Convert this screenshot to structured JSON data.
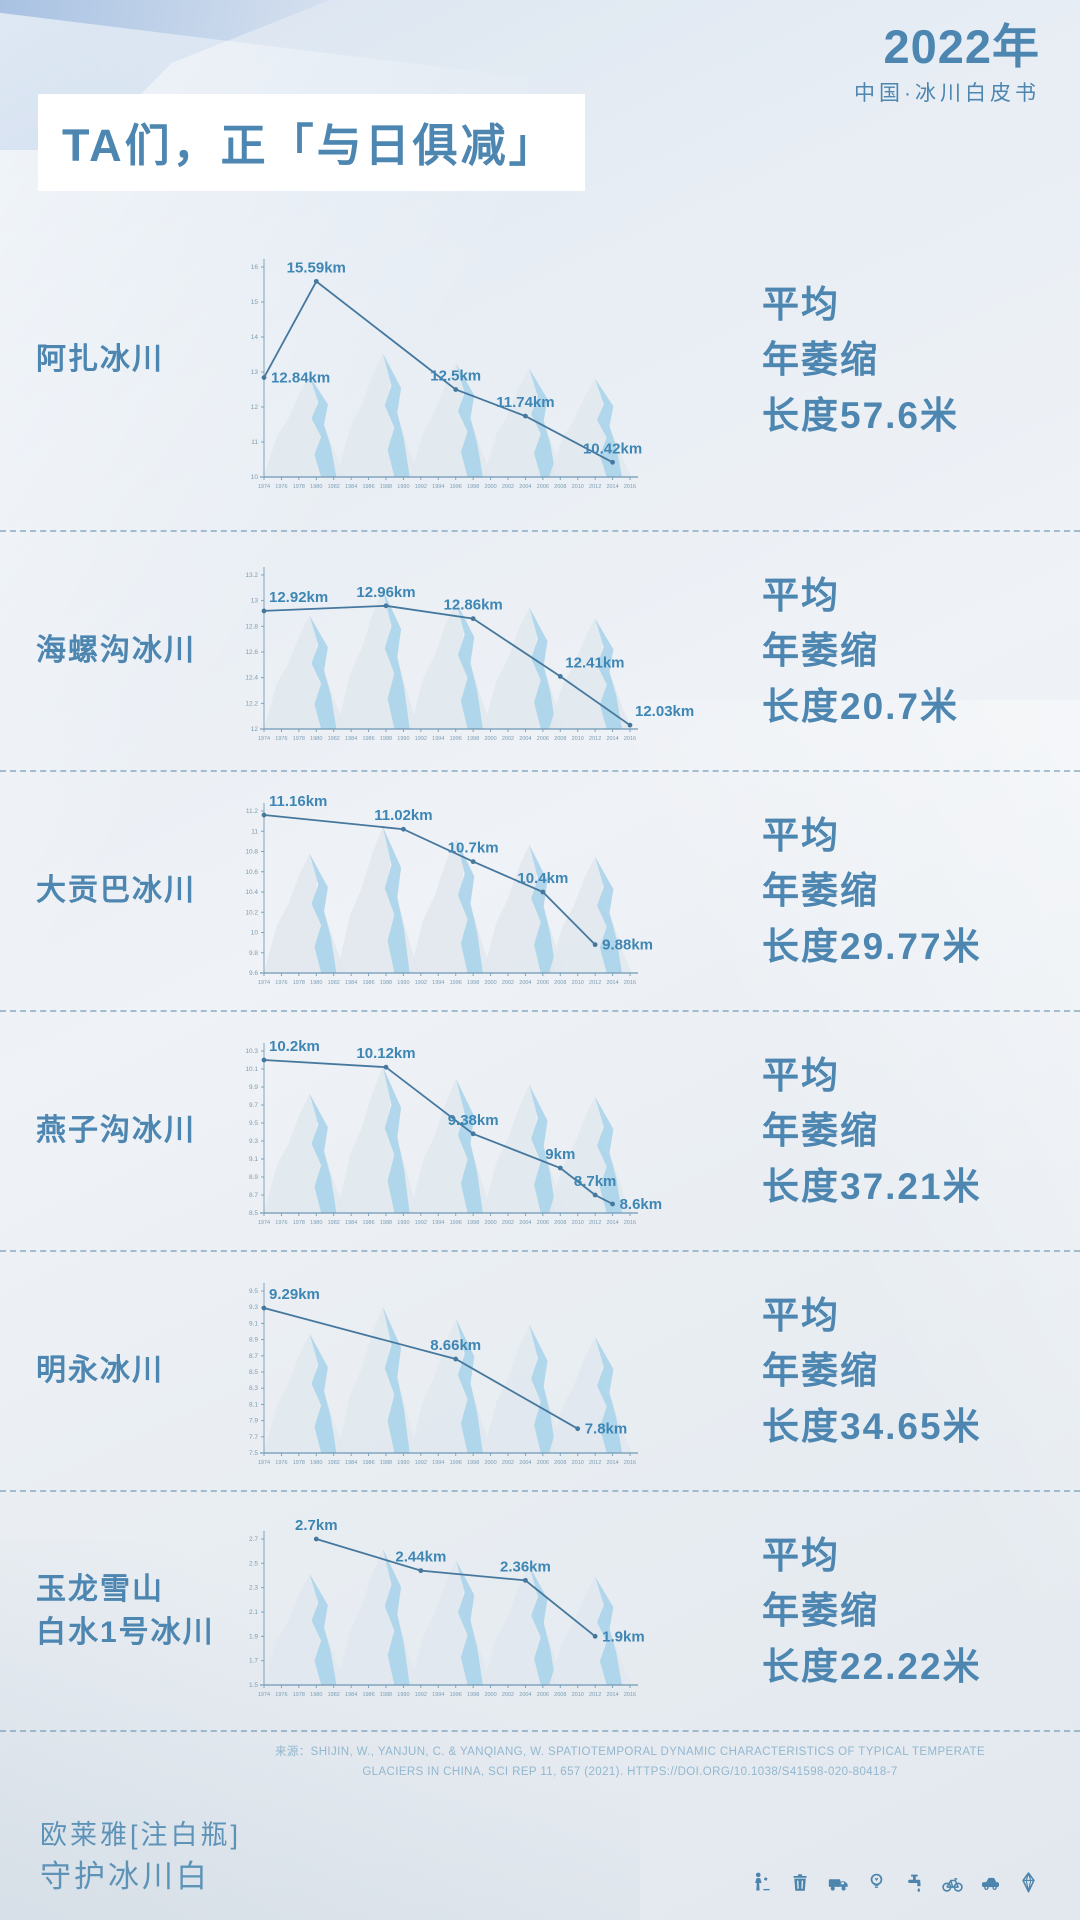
{
  "header": {
    "year": "2022年",
    "subtitle": "中国·冰川白皮书"
  },
  "title": "TA们，正「与日俱减」",
  "colors": {
    "accent_text": "#4d86b0",
    "chart_line": "#46789e",
    "point_label": "#3e86b4",
    "tick_text": "#7b9cb3",
    "mountain_gray": "#e2e8ee",
    "mountain_blue": "#a7d2ea",
    "divider": "#658FAE",
    "source_text": "#92b7cf",
    "plate_bg": "#ffffff"
  },
  "sections": [
    {
      "name_lines": [
        "阿扎冰川"
      ],
      "stat_lines": [
        "平均",
        "年萎缩",
        "长度57.6米"
      ]
    },
    {
      "name_lines": [
        "海螺沟冰川"
      ],
      "stat_lines": [
        "平均",
        "年萎缩",
        "长度20.7米"
      ]
    },
    {
      "name_lines": [
        "大贡巴冰川"
      ],
      "stat_lines": [
        "平均",
        "年萎缩",
        "长度29.77米"
      ]
    },
    {
      "name_lines": [
        "燕子沟冰川"
      ],
      "stat_lines": [
        "平均",
        "年萎缩",
        "长度37.21米"
      ]
    },
    {
      "name_lines": [
        "明永冰川"
      ],
      "stat_lines": [
        "平均",
        "年萎缩",
        "长度34.65米"
      ]
    },
    {
      "name_lines": [
        "玉龙雪山",
        "白水1号冰川"
      ],
      "stat_lines": [
        "平均",
        "年萎缩",
        "长度22.22米"
      ]
    }
  ],
  "chart_data": [
    {
      "type": "line",
      "title": "阿扎冰川",
      "unit": "km",
      "ylim": [
        10,
        16
      ],
      "yticks": [
        16,
        15,
        14,
        13,
        12,
        11,
        10
      ],
      "x_years": [
        1974,
        1976,
        1978,
        1980,
        1982,
        1984,
        1986,
        1988,
        1990,
        1992,
        1994,
        1996,
        1998,
        2000,
        2002,
        2004,
        2006,
        2008,
        2010,
        2012,
        2014,
        2016
      ],
      "points": [
        {
          "year": 1974,
          "value": 12.84,
          "label": "12.84km",
          "label_pos": "right"
        },
        {
          "year": 1980,
          "value": 15.59,
          "label": "15.59km",
          "label_pos": "above"
        },
        {
          "year": 1996,
          "value": 12.5,
          "label": "12.5km",
          "label_pos": "above"
        },
        {
          "year": 2004,
          "value": 11.74,
          "label": "11.74km",
          "label_pos": "above"
        },
        {
          "year": 2014,
          "value": 10.42,
          "label": "10.42km",
          "label_pos": "above"
        }
      ]
    },
    {
      "type": "line",
      "title": "海螺沟冰川",
      "unit": "km",
      "ylim": [
        12,
        13.2
      ],
      "yticks": [
        13.2,
        13,
        12.8,
        12.6,
        12.4,
        12.2,
        12
      ],
      "x_years": [
        1974,
        1976,
        1978,
        1980,
        1982,
        1984,
        1986,
        1988,
        1990,
        1992,
        1994,
        1996,
        1998,
        2000,
        2002,
        2004,
        2006,
        2008,
        2010,
        2012,
        2014,
        2016
      ],
      "points": [
        {
          "year": 1974,
          "value": 12.92,
          "label": "12.92km",
          "label_pos": "upright"
        },
        {
          "year": 1988,
          "value": 12.96,
          "label": "12.96km",
          "label_pos": "above"
        },
        {
          "year": 1998,
          "value": 12.86,
          "label": "12.86km",
          "label_pos": "above"
        },
        {
          "year": 2008,
          "value": 12.41,
          "label": "12.41km",
          "label_pos": "upright"
        },
        {
          "year": 2016,
          "value": 12.03,
          "label": "12.03km",
          "label_pos": "upright"
        }
      ]
    },
    {
      "type": "line",
      "title": "大贡巴冰川",
      "unit": "km",
      "ylim": [
        9.6,
        11.2
      ],
      "yticks": [
        11.2,
        11,
        10.8,
        10.6,
        10.4,
        10.2,
        10,
        9.8,
        9.6
      ],
      "x_years": [
        1974,
        1976,
        1978,
        1980,
        1982,
        1984,
        1986,
        1988,
        1990,
        1992,
        1994,
        1996,
        1998,
        2000,
        2002,
        2004,
        2006,
        2008,
        2010,
        2012,
        2014,
        2016
      ],
      "points": [
        {
          "year": 1974,
          "value": 11.16,
          "label": "11.16km",
          "label_pos": "upright"
        },
        {
          "year": 1990,
          "value": 11.02,
          "label": "11.02km",
          "label_pos": "above"
        },
        {
          "year": 1998,
          "value": 10.7,
          "label": "10.7km",
          "label_pos": "above"
        },
        {
          "year": 2006,
          "value": 10.4,
          "label": "10.4km",
          "label_pos": "above"
        },
        {
          "year": 2012,
          "value": 9.88,
          "label": "9.88km",
          "label_pos": "right"
        }
      ]
    },
    {
      "type": "line",
      "title": "燕子沟冰川",
      "unit": "km",
      "ylim": [
        8.5,
        10.3
      ],
      "yticks": [
        10.3,
        10.1,
        9.9,
        9.7,
        9.5,
        9.3,
        9.1,
        8.9,
        8.7,
        8.5
      ],
      "x_years": [
        1974,
        1976,
        1978,
        1980,
        1982,
        1984,
        1986,
        1988,
        1990,
        1992,
        1994,
        1996,
        1998,
        2000,
        2002,
        2004,
        2006,
        2008,
        2010,
        2012,
        2014,
        2016
      ],
      "points": [
        {
          "year": 1974,
          "value": 10.2,
          "label": "10.2km",
          "label_pos": "upright"
        },
        {
          "year": 1988,
          "value": 10.12,
          "label": "10.12km",
          "label_pos": "above"
        },
        {
          "year": 1998,
          "value": 9.38,
          "label": "9.38km",
          "label_pos": "above"
        },
        {
          "year": 2008,
          "value": 9.0,
          "label": "9km",
          "label_pos": "above"
        },
        {
          "year": 2012,
          "value": 8.7,
          "label": "8.7km",
          "label_pos": "above"
        },
        {
          "year": 2014,
          "value": 8.6,
          "label": "8.6km",
          "label_pos": "right"
        }
      ]
    },
    {
      "type": "line",
      "title": "明永冰川",
      "unit": "km",
      "ylim": [
        7.5,
        9.5
      ],
      "yticks": [
        9.5,
        9.3,
        9.1,
        8.9,
        8.7,
        8.5,
        8.3,
        8.1,
        7.9,
        7.7,
        7.5
      ],
      "x_years": [
        1974,
        1976,
        1978,
        1980,
        1982,
        1984,
        1986,
        1988,
        1990,
        1992,
        1994,
        1996,
        1998,
        2000,
        2002,
        2004,
        2006,
        2008,
        2010,
        2012,
        2014,
        2016
      ],
      "points": [
        {
          "year": 1974,
          "value": 9.29,
          "label": "9.29km",
          "label_pos": "upright"
        },
        {
          "year": 1996,
          "value": 8.66,
          "label": "8.66km",
          "label_pos": "above"
        },
        {
          "year": 2010,
          "value": 7.8,
          "label": "7.8km",
          "label_pos": "right"
        }
      ]
    },
    {
      "type": "line",
      "title": "玉龙雪山白水1号冰川",
      "unit": "km",
      "ylim": [
        1.5,
        2.7
      ],
      "yticks": [
        2.7,
        2.5,
        2.3,
        2.1,
        1.9,
        1.7,
        1.5
      ],
      "x_years": [
        1974,
        1976,
        1978,
        1980,
        1982,
        1984,
        1986,
        1988,
        1990,
        1992,
        1994,
        1996,
        1998,
        2000,
        2002,
        2004,
        2006,
        2008,
        2010,
        2012,
        2014,
        2016
      ],
      "points": [
        {
          "year": 1980,
          "value": 2.7,
          "label": "2.7km",
          "label_pos": "above"
        },
        {
          "year": 1992,
          "value": 2.44,
          "label": "2.44km",
          "label_pos": "above"
        },
        {
          "year": 2004,
          "value": 2.36,
          "label": "2.36km",
          "label_pos": "above"
        },
        {
          "year": 2012,
          "value": 1.9,
          "label": "1.9km",
          "label_pos": "right"
        }
      ]
    }
  ],
  "source": {
    "text": "来源：SHIJIN, W., YANJUN, C. & YANQIANG, W. SPATIOTEMPORAL DYNAMIC CHARACTERISTICS OF TYPICAL TEMPERATE GLACIERS IN CHINA, SCI REP 11, 657 (2021). HTTPS://DOI.ORG/10.1038/S41598-020-80418-7"
  },
  "footer": {
    "brand_line1": "欧莱雅[注白瓶]",
    "brand_line2": "守护冰川白",
    "icons": [
      "person-litter-icon",
      "trash-bin-icon",
      "delivery-truck-icon",
      "light-bulb-icon",
      "water-tap-icon",
      "bicycle-icon",
      "car-icon",
      "ice-crystal-icon"
    ]
  }
}
